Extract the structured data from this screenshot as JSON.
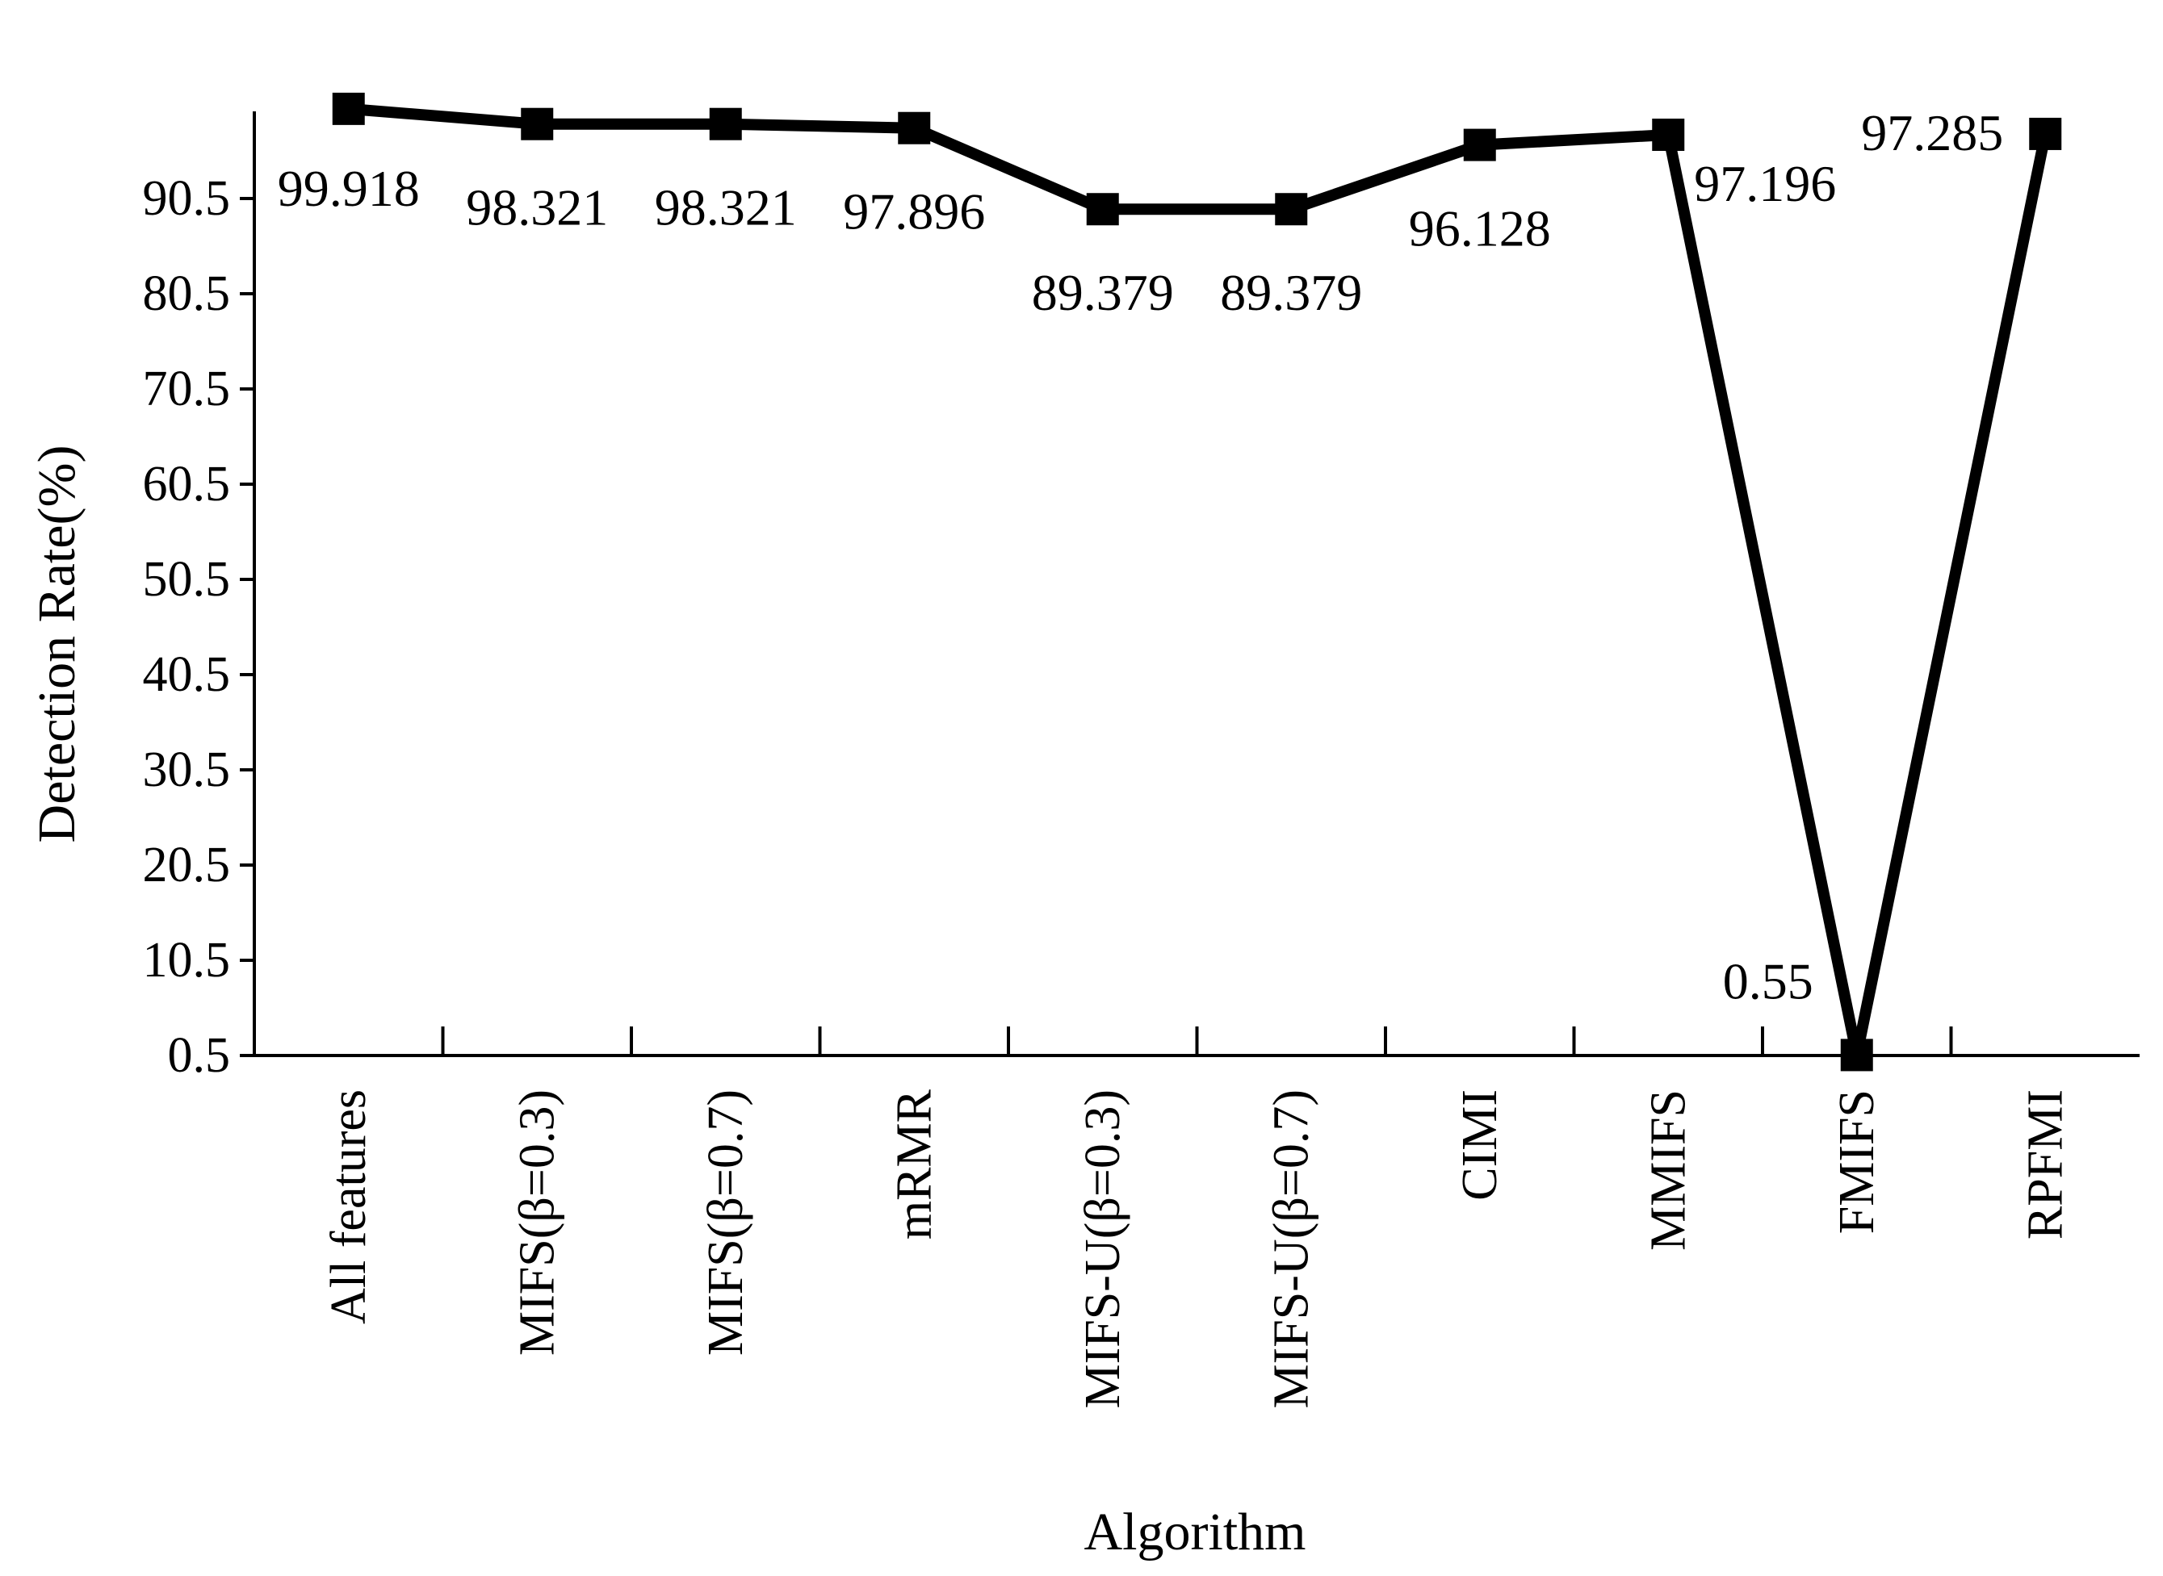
{
  "chart_data": {
    "type": "line",
    "title": "",
    "xlabel": "Algorithm",
    "ylabel": "Detection Rate(%)",
    "ylim": [
      0.5,
      100.5
    ],
    "yticks": [
      "0.5",
      "10.5",
      "20.5",
      "30.5",
      "40.5",
      "50.5",
      "60.5",
      "70.5",
      "80.5",
      "90.5"
    ],
    "grid": false,
    "legend": "none",
    "categories": [
      "All features",
      "MIFS(β=0.3)",
      "MIFS(β=0.7)",
      "mRMR",
      "MIFS-U(β=0.3)",
      "MIFS-U(β=0.7)",
      "CIMI",
      "MMIFS",
      "FMIFS",
      "RPFMI"
    ],
    "series": [
      {
        "values": [
          99.918,
          98.321,
          98.321,
          97.896,
          89.379,
          89.379,
          96.128,
          97.196,
          0.55,
          97.285
        ],
        "labels": [
          "99.918",
          "98.321",
          "98.321",
          "97.896",
          "89.379",
          "89.379",
          "96.128",
          "97.196",
          "0.55",
          "97.285"
        ],
        "color": "#000000",
        "marker": "square"
      }
    ]
  }
}
